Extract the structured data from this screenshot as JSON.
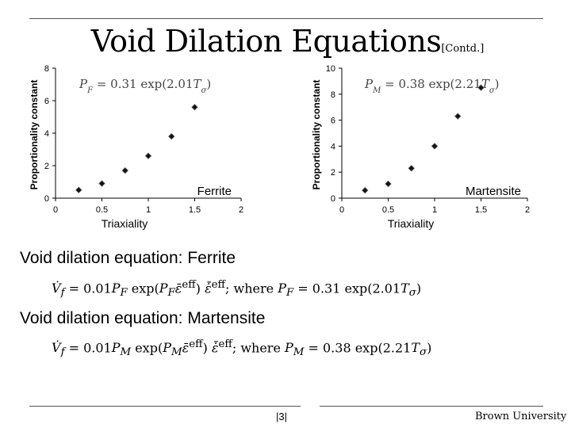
{
  "slide": {
    "title": "Void Dilation Equations",
    "title_suffix": "[Contd.]",
    "page": "|3|",
    "footer_org": "Brown University"
  },
  "sections": {
    "ferrite_heading": "Void dilation equation: Ferrite",
    "ferrite_formula": "V̇f = 0.01PF exp(PF ε̄eff) ε̇̄eff; where PF = 0.31 exp(2.01Tσ)",
    "martensite_heading": "Void dilation equation: Martensite",
    "martensite_formula": "V̇f = 0.01PM exp(PM ε̄eff) ε̇̄eff; where PM = 0.38 exp(2.21Tσ)"
  },
  "chart_data": [
    {
      "type": "scatter",
      "title": "",
      "xlabel": "Triaxiality",
      "ylabel": "Proportionality constant",
      "annotation": "Ferrite",
      "equation": "PF = 0.31 exp(2.01Tσ)",
      "xlim": [
        0,
        2
      ],
      "ylim": [
        0,
        8
      ],
      "xticks": [
        "0",
        "0.5",
        "1",
        "1.5",
        "2"
      ],
      "yticks": [
        "0",
        "2",
        "4",
        "6",
        "8"
      ],
      "grid": false,
      "x": [
        0.25,
        0.5,
        0.75,
        1.0,
        1.25,
        1.5
      ],
      "y": [
        0.5,
        0.9,
        1.7,
        2.6,
        3.8,
        5.6
      ]
    },
    {
      "type": "scatter",
      "title": "",
      "xlabel": "Triaxiality",
      "ylabel": "Proportionality constant",
      "annotation": "Martensite",
      "equation": "PM = 0.38 exp(2.21Tσ)",
      "xlim": [
        0,
        2
      ],
      "ylim": [
        0,
        10
      ],
      "xticks": [
        "0",
        "0.5",
        "1",
        "1.5",
        "2"
      ],
      "yticks": [
        "0",
        "2",
        "4",
        "6",
        "8",
        "10"
      ],
      "grid": false,
      "x": [
        0.25,
        0.5,
        0.75,
        1.0,
        1.25,
        1.5
      ],
      "y": [
        0.6,
        1.1,
        2.3,
        4.0,
        6.3,
        8.5
      ]
    }
  ]
}
